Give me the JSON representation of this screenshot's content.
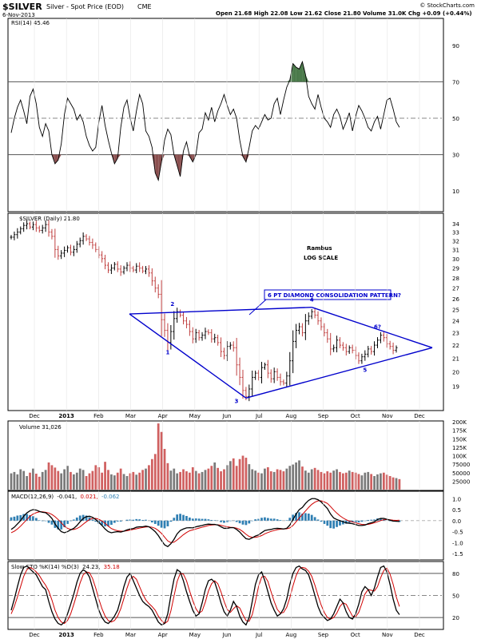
{
  "header": {
    "symbol": "$SILVER",
    "description": "Silver - Spot Price (EOD)",
    "exchange": "CME",
    "date": "6-Nov-2013",
    "ohlc": "Open 21.68   High 22.08   Low 21.62   Close 21.80   Volume 31.0K   Chg +0.09 (+0.44%)",
    "watermark": "© StockCharts.com"
  },
  "colors": {
    "up": "#000000",
    "down": "#c04040",
    "rsi_overbought": "#4a7a4a",
    "rsi_oversold": "#8b5050",
    "trend": "#0000cc",
    "macd_signal": "#d00000",
    "macd_hist": "#2f7fb3",
    "sto_d": "#d00000",
    "vol_up": "#7a7a7a",
    "vol_down": "#d06060"
  },
  "x_axis": {
    "top_labels": [
      "Dec",
      "2013",
      "Feb",
      "Mar",
      "Apr",
      "May",
      "Jun",
      "Jul",
      "Aug",
      "Sep",
      "Oct",
      "Nov",
      "Dec"
    ],
    "bottom_labels": [
      "Dec",
      "2013",
      "Feb",
      "Mar",
      "Apr",
      "May",
      "Jun",
      "Jul",
      "Aug",
      "Sep",
      "Oct",
      "Nov",
      "Dec"
    ]
  },
  "chart_data": [
    {
      "type": "line",
      "panel": "rsi",
      "legend": "RSI(14) 45.46",
      "ylim": [
        0,
        100
      ],
      "ticks": [
        "90",
        "70",
        "50",
        "30",
        "10"
      ],
      "tick_values": [
        90,
        70,
        50,
        30,
        10
      ],
      "overbought": 70,
      "oversold": 30,
      "midline": 50,
      "values": [
        42,
        50,
        56,
        60,
        54,
        47,
        62,
        66,
        58,
        45,
        40,
        47,
        43,
        30,
        25,
        27,
        36,
        52,
        61,
        58,
        55,
        49,
        52,
        48,
        40,
        35,
        32,
        34,
        48,
        57,
        46,
        38,
        31,
        25,
        28,
        45,
        56,
        60,
        50,
        43,
        54,
        63,
        58,
        43,
        40,
        34,
        20,
        16,
        26,
        38,
        44,
        41,
        30,
        24,
        18,
        32,
        37,
        29,
        26,
        30,
        42,
        44,
        53,
        49,
        56,
        48,
        54,
        58,
        63,
        57,
        52,
        55,
        50,
        38,
        29,
        26,
        34,
        43,
        46,
        44,
        48,
        52,
        49,
        50,
        58,
        61,
        52,
        60,
        67,
        71,
        80,
        78,
        77,
        81,
        74,
        62,
        58,
        55,
        63,
        56,
        50,
        48,
        45,
        52,
        55,
        51,
        44,
        48,
        53,
        43,
        51,
        57,
        54,
        50,
        45,
        43,
        48,
        51,
        44,
        52,
        60,
        61,
        55,
        48,
        45
      ]
    },
    {
      "type": "ohlc",
      "panel": "price",
      "legend": "$SILVER (Daily) 21.80",
      "scale": "log",
      "ylim": [
        17.5,
        35
      ],
      "ticks": [
        "34",
        "33",
        "32",
        "31",
        "30",
        "29",
        "28",
        "27",
        "26",
        "25",
        "24",
        "23",
        "22",
        "21",
        "20",
        "19"
      ],
      "tick_values": [
        34,
        33,
        32,
        31,
        30,
        29,
        28,
        27,
        26,
        25,
        24,
        23,
        22,
        21,
        20,
        19
      ],
      "close": [
        32.4,
        32.7,
        33.0,
        33.4,
        33.8,
        34.0,
        33.6,
        33.9,
        33.5,
        33.2,
        33.5,
        33.9,
        33.0,
        32.5,
        31.0,
        30.3,
        30.6,
        30.9,
        31.2,
        30.7,
        31.0,
        31.6,
        32.0,
        32.5,
        32.2,
        31.8,
        31.5,
        31.0,
        30.4,
        30.0,
        29.3,
        28.8,
        29.0,
        29.4,
        28.9,
        28.6,
        29.0,
        29.3,
        29.0,
        28.8,
        29.2,
        29.0,
        28.7,
        28.9,
        28.5,
        27.7,
        27.0,
        26.4,
        24.1,
        23.2,
        22.2,
        23.1,
        24.2,
        24.8,
        24.5,
        24.0,
        23.7,
        23.1,
        22.5,
        23.0,
        22.6,
        22.8,
        23.1,
        23.0,
        22.5,
        22.6,
        22.2,
        21.5,
        21.2,
        21.9,
        22.0,
        21.8,
        20.5,
        19.6,
        18.7,
        18.3,
        18.8,
        19.6,
        19.9,
        19.6,
        20.3,
        20.5,
        19.9,
        19.5,
        20.0,
        19.6,
        19.3,
        19.2,
        19.7,
        20.8,
        22.3,
        23.2,
        23.5,
        23.0,
        24.0,
        24.4,
        24.8,
        24.5,
        24.0,
        23.5,
        23.0,
        22.5,
        21.7,
        21.8,
        22.4,
        22.0,
        21.8,
        21.5,
        21.8,
        21.6,
        21.2,
        20.8,
        21.1,
        21.3,
        21.7,
        21.5,
        22.0,
        22.4,
        22.8,
        22.6,
        22.1,
        21.9,
        21.6,
        21.8
      ]
    },
    {
      "type": "bar",
      "panel": "volume",
      "legend": "Volume 31,026",
      "ylim": [
        0,
        200000
      ],
      "ticks": [
        "200K",
        "175K",
        "150K",
        "125K",
        "100K",
        "75000",
        "50000",
        "25000"
      ],
      "tick_values": [
        200000,
        175000,
        150000,
        125000,
        100000,
        75000,
        50000,
        25000
      ],
      "values": [
        48000,
        52000,
        45000,
        60000,
        55000,
        40000,
        50000,
        62000,
        47000,
        38000,
        52000,
        58000,
        80000,
        72000,
        65000,
        55000,
        48000,
        60000,
        70000,
        52000,
        45000,
        50000,
        62000,
        58000,
        40000,
        48000,
        55000,
        72000,
        66000,
        50000,
        82000,
        58000,
        45000,
        42000,
        50000,
        62000,
        46000,
        40000,
        48000,
        52000,
        44000,
        50000,
        58000,
        62000,
        72000,
        90000,
        105000,
        195000,
        170000,
        120000,
        78000,
        56000,
        62000,
        48000,
        52000,
        60000,
        54000,
        50000,
        66000,
        55000,
        48000,
        52000,
        58000,
        62000,
        70000,
        80000,
        64000,
        54000,
        60000,
        72000,
        84000,
        92000,
        70000,
        90000,
        100000,
        94000,
        75000,
        60000,
        56000,
        50000,
        48000,
        62000,
        66000,
        54000,
        52000,
        60000,
        58000,
        54000,
        62000,
        70000,
        74000,
        80000,
        86000,
        68000,
        56000,
        50000,
        60000,
        64000,
        58000,
        52000,
        48000,
        54000,
        50000,
        56000,
        60000,
        52000,
        48000,
        50000,
        56000,
        52000,
        50000,
        46000,
        42000,
        50000,
        52000,
        46000,
        40000,
        45000,
        48000,
        50000,
        44000,
        40000,
        36000,
        34000,
        31000
      ]
    },
    {
      "type": "line",
      "panel": "macd",
      "legend_parts": [
        "MACD(12,26,9)",
        "-0.041,",
        "0.021,",
        "-0.062"
      ],
      "ylim": [
        -1.75,
        1.3
      ],
      "ticks": [
        "1.0",
        "0.5",
        "0.0",
        "-0.5",
        "-1.0",
        "-1.5"
      ],
      "tick_values": [
        1.0,
        0.5,
        0.0,
        -0.5,
        -1.0,
        -1.5
      ],
      "series": [
        {
          "name": "MACD",
          "values": [
            -0.4,
            -0.3,
            -0.15,
            0.0,
            0.2,
            0.35,
            0.45,
            0.5,
            0.48,
            0.42,
            0.38,
            0.36,
            0.25,
            0.1,
            -0.15,
            -0.35,
            -0.5,
            -0.55,
            -0.5,
            -0.42,
            -0.35,
            -0.22,
            -0.05,
            0.1,
            0.18,
            0.2,
            0.15,
            0.05,
            -0.08,
            -0.22,
            -0.38,
            -0.5,
            -0.55,
            -0.52,
            -0.5,
            -0.52,
            -0.48,
            -0.42,
            -0.38,
            -0.36,
            -0.3,
            -0.28,
            -0.28,
            -0.25,
            -0.28,
            -0.38,
            -0.5,
            -0.68,
            -0.9,
            -1.1,
            -1.18,
            -1.05,
            -0.85,
            -0.6,
            -0.45,
            -0.38,
            -0.33,
            -0.32,
            -0.33,
            -0.28,
            -0.25,
            -0.22,
            -0.18,
            -0.16,
            -0.17,
            -0.17,
            -0.2,
            -0.28,
            -0.35,
            -0.35,
            -0.32,
            -0.32,
            -0.4,
            -0.52,
            -0.68,
            -0.82,
            -0.85,
            -0.78,
            -0.7,
            -0.65,
            -0.55,
            -0.45,
            -0.42,
            -0.4,
            -0.36,
            -0.35,
            -0.36,
            -0.38,
            -0.35,
            -0.2,
            0.05,
            0.3,
            0.5,
            0.6,
            0.78,
            0.92,
            1.0,
            1.0,
            0.95,
            0.85,
            0.7,
            0.55,
            0.3,
            0.12,
            0.05,
            0.0,
            -0.05,
            -0.1,
            -0.12,
            -0.14,
            -0.18,
            -0.22,
            -0.22,
            -0.2,
            -0.14,
            -0.1,
            -0.05,
            0.05,
            0.1,
            0.1,
            0.06,
            0.02,
            -0.02,
            -0.03,
            -0.04
          ]
        },
        {
          "name": "Signal",
          "values": [
            -0.55,
            -0.48,
            -0.38,
            -0.25,
            -0.1,
            0.05,
            0.2,
            0.3,
            0.36,
            0.4,
            0.4,
            0.38,
            0.35,
            0.28,
            0.18,
            0.05,
            -0.1,
            -0.25,
            -0.35,
            -0.4,
            -0.4,
            -0.36,
            -0.28,
            -0.16,
            -0.05,
            0.05,
            0.1,
            0.1,
            0.06,
            -0.02,
            -0.12,
            -0.25,
            -0.36,
            -0.42,
            -0.46,
            -0.48,
            -0.48,
            -0.46,
            -0.43,
            -0.4,
            -0.37,
            -0.34,
            -0.31,
            -0.29,
            -0.28,
            -0.3,
            -0.35,
            -0.45,
            -0.58,
            -0.75,
            -0.92,
            -1.0,
            -0.98,
            -0.88,
            -0.76,
            -0.64,
            -0.54,
            -0.46,
            -0.42,
            -0.38,
            -0.34,
            -0.3,
            -0.26,
            -0.22,
            -0.2,
            -0.19,
            -0.19,
            -0.21,
            -0.25,
            -0.28,
            -0.3,
            -0.31,
            -0.34,
            -0.4,
            -0.5,
            -0.62,
            -0.72,
            -0.76,
            -0.76,
            -0.73,
            -0.68,
            -0.6,
            -0.54,
            -0.49,
            -0.45,
            -0.41,
            -0.39,
            -0.38,
            -0.37,
            -0.33,
            -0.22,
            -0.05,
            0.12,
            0.28,
            0.44,
            0.6,
            0.74,
            0.84,
            0.9,
            0.9,
            0.85,
            0.78,
            0.64,
            0.48,
            0.34,
            0.22,
            0.12,
            0.04,
            -0.02,
            -0.06,
            -0.1,
            -0.14,
            -0.17,
            -0.18,
            -0.17,
            -0.14,
            -0.1,
            -0.05,
            0.0,
            0.04,
            0.05,
            0.04,
            0.02,
            0.01,
            0.02
          ]
        }
      ]
    },
    {
      "type": "line",
      "panel": "sto",
      "legend_parts": [
        "Slow STO %K(14) %D(3)",
        "24.23,",
        "35.18"
      ],
      "ylim": [
        5,
        95
      ],
      "ticks": [
        "80",
        "50",
        "20"
      ],
      "tick_values": [
        80,
        50,
        20
      ],
      "overbought": 80,
      "oversold": 20,
      "series": [
        {
          "name": "%K",
          "values": [
            30,
            45,
            62,
            78,
            88,
            90,
            86,
            82,
            78,
            70,
            62,
            58,
            42,
            28,
            18,
            12,
            10,
            14,
            25,
            38,
            52,
            68,
            80,
            85,
            82,
            75,
            60,
            45,
            30,
            20,
            14,
            12,
            16,
            22,
            30,
            45,
            62,
            75,
            80,
            70,
            60,
            50,
            42,
            38,
            35,
            30,
            22,
            14,
            10,
            12,
            25,
            50,
            72,
            85,
            82,
            70,
            55,
            42,
            30,
            22,
            25,
            40,
            58,
            70,
            72,
            68,
            55,
            40,
            28,
            22,
            30,
            42,
            35,
            22,
            14,
            10,
            20,
            42,
            65,
            78,
            82,
            70,
            55,
            40,
            30,
            22,
            25,
            32,
            45,
            65,
            80,
            88,
            90,
            86,
            84,
            78,
            65,
            50,
            35,
            25,
            20,
            16,
            18,
            25,
            35,
            45,
            40,
            28,
            20,
            18,
            25,
            38,
            55,
            62,
            58,
            50,
            60,
            75,
            88,
            90,
            82,
            65,
            45,
            30,
            24
          ]
        },
        {
          "name": "%D",
          "values": [
            25,
            35,
            48,
            62,
            76,
            85,
            88,
            86,
            82,
            77,
            70,
            64,
            56,
            44,
            30,
            20,
            14,
            12,
            16,
            25,
            38,
            52,
            67,
            78,
            82,
            81,
            73,
            60,
            45,
            32,
            22,
            16,
            14,
            16,
            22,
            32,
            46,
            60,
            72,
            76,
            72,
            62,
            52,
            44,
            39,
            35,
            30,
            22,
            16,
            12,
            15,
            29,
            49,
            69,
            80,
            79,
            70,
            56,
            43,
            32,
            26,
            29,
            41,
            56,
            66,
            70,
            66,
            55,
            42,
            31,
            27,
            32,
            36,
            33,
            24,
            16,
            15,
            24,
            42,
            62,
            75,
            76,
            69,
            55,
            42,
            31,
            26,
            27,
            34,
            47,
            63,
            77,
            86,
            88,
            87,
            83,
            76,
            64,
            50,
            37,
            27,
            20,
            18,
            20,
            26,
            35,
            40,
            38,
            30,
            22,
            21,
            27,
            39,
            52,
            58,
            57,
            56,
            62,
            74,
            84,
            87,
            79,
            65,
            48,
            35
          ]
        }
      ]
    }
  ],
  "annotations": {
    "rambus": "Rambus",
    "log_scale": "LOG SCALE",
    "pattern": "6 PT DIAMOND CONSOLIDATION PATTERN?",
    "points": [
      "1",
      "2",
      "3",
      "4",
      "5",
      "6?"
    ]
  }
}
